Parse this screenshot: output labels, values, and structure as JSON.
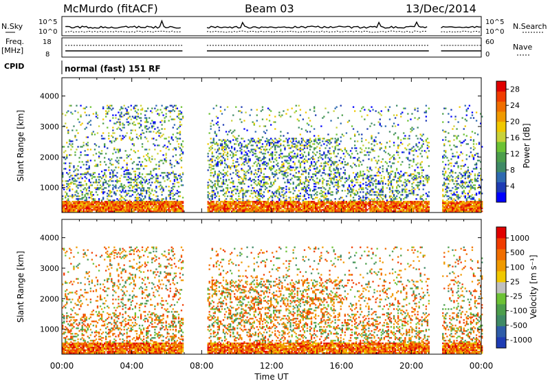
{
  "header": {
    "station": "McMurdo (fitACF)",
    "beam": "Beam 03",
    "date": "13/Dec/2014"
  },
  "params": {
    "nsky_label": "N.Sky",
    "nsearch_label": "N.Search",
    "freq_label": "Freq.",
    "freq_unit": "[MHz]",
    "nave_label": "Nave",
    "cpid_label": "CPID",
    "cpid_value": "normal (fast) 151 RF",
    "noise_ticks_left": [
      "10^5",
      "10^0"
    ],
    "noise_ticks_right": [
      "10^5",
      "10^0"
    ],
    "freq_ticks": [
      "18",
      "8"
    ],
    "nave_ticks": [
      "60",
      "0"
    ]
  },
  "chart_data": [
    {
      "type": "heatmap",
      "quantity": "Power",
      "ylabel": "Slant Range [km]",
      "yticks": [
        1000,
        2000,
        3000,
        4000
      ],
      "ylim": [
        180,
        4600
      ],
      "xticks": [
        "00:00",
        "04:00",
        "08:00",
        "12:00",
        "16:00",
        "20:00",
        "00:00"
      ],
      "xlim_hours": [
        0,
        24
      ],
      "data_gaps_hours": [
        [
          6.9,
          8.3
        ],
        [
          21.0,
          21.7
        ]
      ],
      "colorbar": {
        "label": "Power [dB]",
        "ticks": [
          "4",
          "8",
          "12",
          "16",
          "20",
          "24",
          "28"
        ],
        "colors": [
          "#0000ff",
          "#1e3cb4",
          "#2e6ab0",
          "#3f8a66",
          "#4c9e4c",
          "#6cc235",
          "#c8d23a",
          "#f0c800",
          "#f09a00",
          "#f06e00",
          "#f03c00",
          "#e00000"
        ]
      }
    },
    {
      "type": "heatmap",
      "quantity": "Velocity",
      "ylabel": "Slant Range [km]",
      "yticks": [
        1000,
        2000,
        3000,
        4000
      ],
      "ylim": [
        180,
        4600
      ],
      "xticks": [
        "00:00",
        "04:00",
        "08:00",
        "12:00",
        "16:00",
        "20:00",
        "00:00"
      ],
      "xlabel": "Time UT",
      "xlim_hours": [
        0,
        24
      ],
      "data_gaps_hours": [
        [
          6.9,
          8.3
        ],
        [
          21.0,
          21.7
        ]
      ],
      "colorbar": {
        "label": "Velocity [m s⁻¹]",
        "ticks": [
          "1000",
          "500",
          "100",
          "25",
          "-25",
          "-100",
          "-500",
          "-1000"
        ],
        "colors": [
          "#1e3cb4",
          "#2e5ca8",
          "#3f8a66",
          "#4c9e4c",
          "#6cc235",
          "#c0c0c0",
          "#f0c800",
          "#f09a00",
          "#f06e00",
          "#f03c00",
          "#e00000"
        ]
      }
    }
  ]
}
